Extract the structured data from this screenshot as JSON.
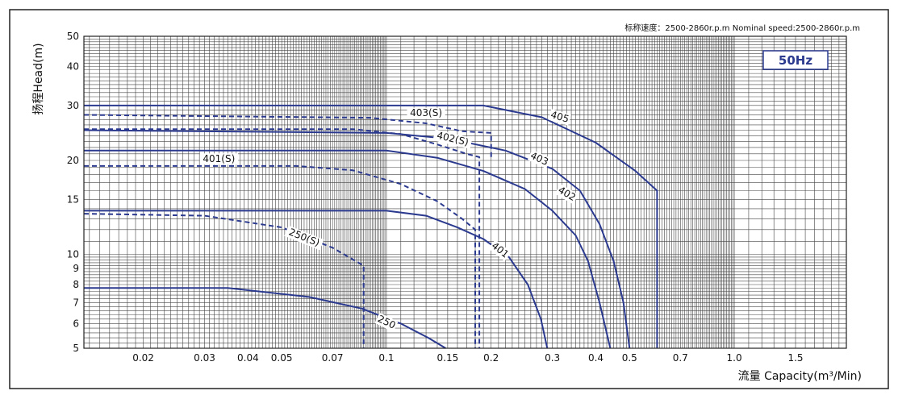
{
  "chart_data": {
    "type": "line",
    "speed_note": "标称速度：2500-2860r.p.m   Nominal speed:2500-2860r.p.m",
    "frequency_badge": "50Hz",
    "xlabel": "流量 Capacity(m³/Min)",
    "ylabel": "扬程Head(m)",
    "x_scale": "log",
    "y_scale": "log",
    "xlim": [
      0.0135,
      2.1
    ],
    "ylim": [
      5,
      50
    ],
    "x_tick_labels": [
      "0.02",
      "0.03",
      "0.04",
      "0.05",
      "0.07",
      "0.1",
      "0.15",
      "0.2",
      "0.3",
      "0.4",
      "0.5",
      "0.7",
      "1.0",
      "1.5"
    ],
    "x_ticks": [
      0.02,
      0.03,
      0.04,
      0.05,
      0.07,
      0.1,
      0.15,
      0.2,
      0.3,
      0.4,
      0.5,
      0.7,
      1.0,
      1.5
    ],
    "y_ticks": [
      5,
      6,
      7,
      8,
      9,
      10,
      15,
      20,
      30,
      40,
      50
    ],
    "y_tick_labels": [
      "5",
      "6",
      "7",
      "8",
      "9",
      "10",
      "15",
      "20",
      "30",
      "40",
      "50"
    ],
    "grid": true,
    "line_color": "#2b3a8f",
    "series": [
      {
        "name": "405",
        "style": "solid",
        "points": [
          [
            0.0135,
            30
          ],
          [
            0.19,
            30
          ],
          [
            0.28,
            27.5
          ],
          [
            0.4,
            22.8
          ],
          [
            0.52,
            18.5
          ],
          [
            0.6,
            16
          ],
          [
            0.6,
            5
          ]
        ],
        "label_at": [
          0.315,
          27.5
        ],
        "label_angle": 16
      },
      {
        "name": "403(S)",
        "style": "dashed",
        "points": [
          [
            0.0135,
            28
          ],
          [
            0.09,
            27.4
          ],
          [
            0.13,
            26.3
          ],
          [
            0.165,
            24.8
          ],
          [
            0.2,
            24.5
          ],
          [
            0.2,
            20.5
          ]
        ],
        "label_at": [
          0.13,
          28.3
        ],
        "label_angle": 0
      },
      {
        "name": "402(S)",
        "style": "dashed",
        "points": [
          [
            0.0135,
            25.2
          ],
          [
            0.08,
            25.2
          ],
          [
            0.11,
            24.3
          ],
          [
            0.14,
            22.5
          ],
          [
            0.17,
            21
          ],
          [
            0.185,
            20.5
          ],
          [
            0.185,
            5
          ]
        ],
        "label_at": [
          0.155,
          23.4
        ],
        "label_angle": 13
      },
      {
        "name": "403",
        "style": "solid",
        "points": [
          [
            0.0135,
            25
          ],
          [
            0.1,
            24.5
          ],
          [
            0.15,
            23.5
          ],
          [
            0.22,
            21.5
          ],
          [
            0.3,
            18.8
          ],
          [
            0.36,
            16
          ],
          [
            0.41,
            12.5
          ],
          [
            0.45,
            9.5
          ],
          [
            0.48,
            7
          ],
          [
            0.5,
            5
          ]
        ],
        "label_at": [
          0.275,
          20.2
        ],
        "label_angle": 25
      },
      {
        "name": "401(S)",
        "style": "dashed",
        "points": [
          [
            0.0135,
            19.2
          ],
          [
            0.055,
            19.2
          ],
          [
            0.08,
            18.6
          ],
          [
            0.11,
            16.8
          ],
          [
            0.14,
            14.8
          ],
          [
            0.165,
            13
          ],
          [
            0.18,
            12
          ],
          [
            0.18,
            5
          ]
        ],
        "label_at": [
          0.033,
          20.2
        ],
        "label_angle": 0
      },
      {
        "name": "402",
        "style": "solid",
        "points": [
          [
            0.0135,
            21.5
          ],
          [
            0.1,
            21.5
          ],
          [
            0.14,
            20.4
          ],
          [
            0.19,
            18.5
          ],
          [
            0.25,
            16.2
          ],
          [
            0.3,
            13.8
          ],
          [
            0.35,
            11.5
          ],
          [
            0.38,
            9.5
          ],
          [
            0.41,
            7
          ],
          [
            0.44,
            5
          ]
        ],
        "label_at": [
          0.33,
          15.6
        ],
        "label_angle": 30
      },
      {
        "name": "401",
        "style": "solid",
        "points": [
          [
            0.0135,
            13.8
          ],
          [
            0.1,
            13.8
          ],
          [
            0.13,
            13.3
          ],
          [
            0.16,
            12.2
          ],
          [
            0.19,
            11.2
          ],
          [
            0.225,
            9.8
          ],
          [
            0.255,
            8
          ],
          [
            0.278,
            6.2
          ],
          [
            0.29,
            5
          ]
        ],
        "label_at": [
          0.212,
          10.3
        ],
        "label_angle": 38
      },
      {
        "name": "250(S)",
        "style": "dashed",
        "points": [
          [
            0.0135,
            13.5
          ],
          [
            0.03,
            13.3
          ],
          [
            0.05,
            12.2
          ],
          [
            0.07,
            10.5
          ],
          [
            0.086,
            9.2
          ],
          [
            0.086,
            5
          ]
        ],
        "label_at": [
          0.058,
          11.3
        ],
        "label_angle": 22
      },
      {
        "name": "250",
        "style": "solid",
        "points": [
          [
            0.0135,
            7.8
          ],
          [
            0.035,
            7.8
          ],
          [
            0.06,
            7.3
          ],
          [
            0.085,
            6.7
          ],
          [
            0.11,
            6
          ],
          [
            0.132,
            5.4
          ],
          [
            0.148,
            5
          ]
        ],
        "label_at": [
          0.1,
          6.05
        ],
        "label_angle": 26
      }
    ]
  }
}
